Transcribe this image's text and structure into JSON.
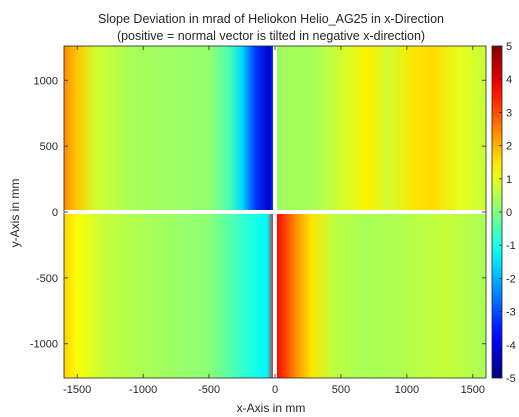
{
  "chart_data": {
    "type": "heatmap",
    "title": "Slope Deviation in mrad of Heliokon Helio_AG25 in x-Direction",
    "subtitle": "(positive = normal vector is tilted in negative x-direction)",
    "xlabel": "x-Axis in mm",
    "ylabel": "y-Axis in mm",
    "xlim": [
      -1600,
      1600
    ],
    "ylim": [
      -1260,
      1260
    ],
    "x_ticks": [
      -1500,
      -1000,
      -500,
      0,
      500,
      1000,
      1500
    ],
    "y_ticks": [
      -1000,
      -500,
      0,
      500,
      1000
    ],
    "colorbar": {
      "range": [
        -5,
        5
      ],
      "ticks": [
        -5,
        -4,
        -3,
        -2,
        -1,
        0,
        1,
        2,
        3,
        4,
        5
      ],
      "colormap": "jet"
    },
    "grid": false,
    "profiles": {
      "upper_half": [
        {
          "x": -1600,
          "value": 2.4
        },
        {
          "x": -1500,
          "value": 1.8
        },
        {
          "x": -1350,
          "value": 0.8
        },
        {
          "x": -1100,
          "value": 0.4
        },
        {
          "x": -800,
          "value": 0.3
        },
        {
          "x": -500,
          "value": 0.2
        },
        {
          "x": -350,
          "value": -0.5
        },
        {
          "x": -250,
          "value": -1.6
        },
        {
          "x": -150,
          "value": -3.2
        },
        {
          "x": -40,
          "value": -4.3
        },
        {
          "x": -10,
          "value": -3.0
        },
        {
          "x": 0,
          "value": 0.3
        },
        {
          "x": 300,
          "value": 0.4
        },
        {
          "x": 550,
          "value": 0.9
        },
        {
          "x": 700,
          "value": 1.4
        },
        {
          "x": 850,
          "value": 0.8
        },
        {
          "x": 1050,
          "value": 1.5
        },
        {
          "x": 1200,
          "value": 1.6
        },
        {
          "x": 1400,
          "value": 1.0
        },
        {
          "x": 1600,
          "value": 0.7
        }
      ],
      "lower_half": [
        {
          "x": -1600,
          "value": 1.7
        },
        {
          "x": -1500,
          "value": 1.2
        },
        {
          "x": -1300,
          "value": 0.7
        },
        {
          "x": -1100,
          "value": 0.5
        },
        {
          "x": -800,
          "value": 0.3
        },
        {
          "x": -500,
          "value": 0.1
        },
        {
          "x": -350,
          "value": -0.4
        },
        {
          "x": -200,
          "value": -0.9
        },
        {
          "x": -60,
          "value": -1.3
        },
        {
          "x": 0,
          "value": 3.8
        },
        {
          "x": 60,
          "value": 3.3
        },
        {
          "x": 150,
          "value": 2.4
        },
        {
          "x": 280,
          "value": 1.5
        },
        {
          "x": 450,
          "value": 0.6
        },
        {
          "x": 700,
          "value": 0.4
        },
        {
          "x": 1000,
          "value": 0.5
        },
        {
          "x": 1300,
          "value": 0.7
        },
        {
          "x": 1600,
          "value": 0.4
        }
      ]
    }
  }
}
